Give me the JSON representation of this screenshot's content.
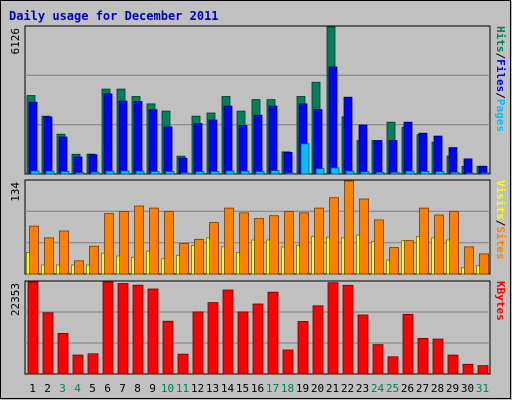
{
  "chart_data": {
    "type": "bar",
    "title": "Daily usage for December 2011",
    "categories": [
      "1",
      "2",
      "3",
      "4",
      "5",
      "6",
      "7",
      "8",
      "9",
      "10",
      "11",
      "12",
      "13",
      "14",
      "15",
      "16",
      "17",
      "18",
      "19",
      "20",
      "21",
      "22",
      "23",
      "24",
      "25",
      "26",
      "27",
      "28",
      "29",
      "30",
      "31"
    ],
    "weekend_days": [
      3,
      4,
      10,
      11,
      17,
      18,
      24,
      25,
      31
    ],
    "panels": [
      {
        "id": "hits-files-pages",
        "ymax_label": "6126",
        "ymax": 6126,
        "right_labels": [
          {
            "text": "Hits",
            "color": "#00805c"
          },
          {
            "text": "/",
            "color": "#000000"
          },
          {
            "text": "Files",
            "color": "#0000ff"
          },
          {
            "text": "/",
            "color": "#000000"
          },
          {
            "text": "Pages",
            "color": "#00c0ff"
          }
        ],
        "series": [
          {
            "name": "Hits",
            "color": "#00805c",
            "values": [
              3270,
              2410,
              1660,
              820,
              830,
              3540,
              3540,
              3230,
              2920,
              2620,
              740,
              2410,
              2540,
              3230,
              2620,
              3100,
              3100,
              920,
              3230,
              3820,
              6126,
              2380,
              1390,
              1390,
              2160,
              1950,
              1640,
              1330,
              750,
              320,
              320
            ]
          },
          {
            "name": "Files",
            "color": "#0000ff",
            "values": [
              2990,
              2380,
              1540,
              710,
              800,
              3340,
              3040,
              3020,
              2680,
              1960,
              660,
              2100,
              2250,
              2830,
              2020,
              2450,
              2830,
              900,
              2920,
              2690,
              4460,
              3200,
              2040,
              1390,
              1390,
              2160,
              1700,
              1580,
              1100,
              630,
              320
            ]
          },
          {
            "name": "Pages",
            "color": "#00c0ff",
            "values": [
              130,
              120,
              110,
              60,
              80,
              120,
              130,
              120,
              110,
              110,
              50,
              100,
              110,
              130,
              120,
              110,
              140,
              40,
              1260,
              220,
              260,
              120,
              90,
              70,
              70,
              120,
              110,
              100,
              70,
              40,
              40
            ]
          }
        ]
      },
      {
        "id": "visits-sites",
        "ymax_label": "134",
        "ymax": 134,
        "right_labels": [
          {
            "text": "Visits",
            "color": "#ffff00"
          },
          {
            "text": "/",
            "color": "#000000"
          },
          {
            "text": "Sites",
            "color": "#ff8000"
          }
        ],
        "series": [
          {
            "name": "Visits",
            "color": "#ffff00",
            "values": [
              31,
              13,
              13,
              13,
              13,
              30,
              26,
              24,
              33,
              22,
              27,
              41,
              52,
              39,
              31,
              49,
              49,
              39,
              41,
              54,
              53,
              52,
              56,
              47,
              20,
              48,
              54,
              52,
              49,
              9,
              12
            ]
          },
          {
            "name": "Sites",
            "color": "#ff8000",
            "values": [
              69,
              52,
              62,
              19,
              40,
              87,
              90,
              98,
              95,
              90,
              44,
              50,
              74,
              95,
              88,
              80,
              84,
              90,
              88,
              95,
              110,
              134,
              108,
              78,
              38,
              48,
              95,
              85,
              90,
              39,
              29
            ]
          }
        ]
      },
      {
        "id": "kbytes",
        "ymax_label": "22353",
        "ymax": 22353,
        "right_labels": [
          {
            "text": "KBytes",
            "color": "#ff0000"
          }
        ],
        "series": [
          {
            "name": "KBytes",
            "color": "#ff0000",
            "values": [
              22353,
              14870,
              9870,
              4580,
              4910,
              22353,
              22000,
              21580,
              20660,
              12830,
              4800,
              15090,
              17340,
              20420,
              15080,
              17000,
              19870,
              5820,
              12750,
              16560,
              22180,
              21550,
              14340,
              7150,
              4190,
              14510,
              8650,
              8490,
              4600,
              2360,
              2040
            ]
          }
        ]
      }
    ]
  }
}
